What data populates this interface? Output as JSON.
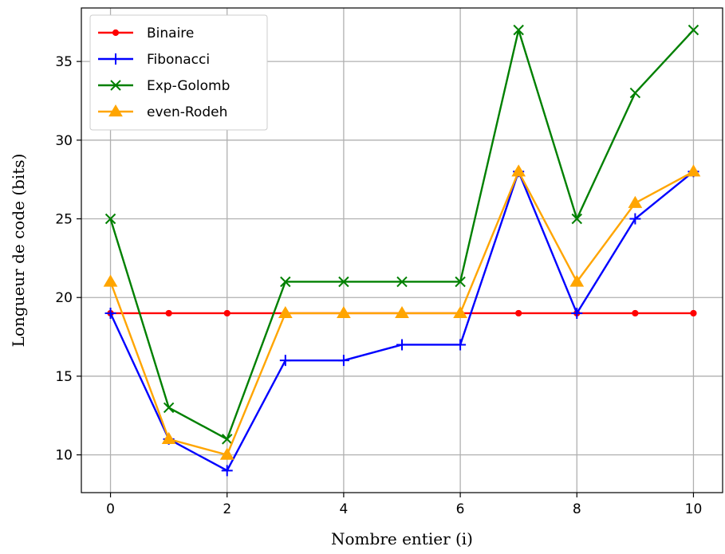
{
  "chart_data": {
    "type": "line",
    "title": "",
    "xlabel": "Nombre entier (i)",
    "ylabel": "Longueur de code (bits)",
    "x": [
      0,
      1,
      2,
      3,
      4,
      5,
      6,
      7,
      8,
      9,
      10
    ],
    "xlim": [
      -0.5,
      10.5
    ],
    "ylim": [
      7.6,
      38.4
    ],
    "xticks": [
      0,
      2,
      4,
      6,
      8,
      10
    ],
    "yticks": [
      10,
      15,
      20,
      25,
      30,
      35
    ],
    "xtick_labels": [
      "0",
      "2",
      "4",
      "6",
      "8",
      "10"
    ],
    "ytick_labels": [
      "10",
      "15",
      "20",
      "25",
      "30",
      "35"
    ],
    "grid": true,
    "legend_position": "top-left",
    "series": [
      {
        "name": "Binaire",
        "color": "#ff0000",
        "marker": "circle",
        "values": [
          19,
          19,
          19,
          19,
          19,
          19,
          19,
          19,
          19,
          19,
          19
        ]
      },
      {
        "name": "Fibonacci",
        "color": "#0000ff",
        "marker": "plus",
        "values": [
          19,
          11,
          9,
          16,
          16,
          17,
          17,
          28,
          19,
          25,
          28
        ]
      },
      {
        "name": "Exp-Golomb",
        "color": "#008000",
        "marker": "x",
        "values": [
          25,
          13,
          11,
          21,
          21,
          21,
          21,
          37,
          25,
          33,
          37
        ]
      },
      {
        "name": "even-Rodeh",
        "color": "#ffa500",
        "marker": "triangle",
        "values": [
          21,
          11,
          10,
          19,
          19,
          19,
          19,
          28,
          21,
          26,
          28
        ]
      }
    ]
  }
}
